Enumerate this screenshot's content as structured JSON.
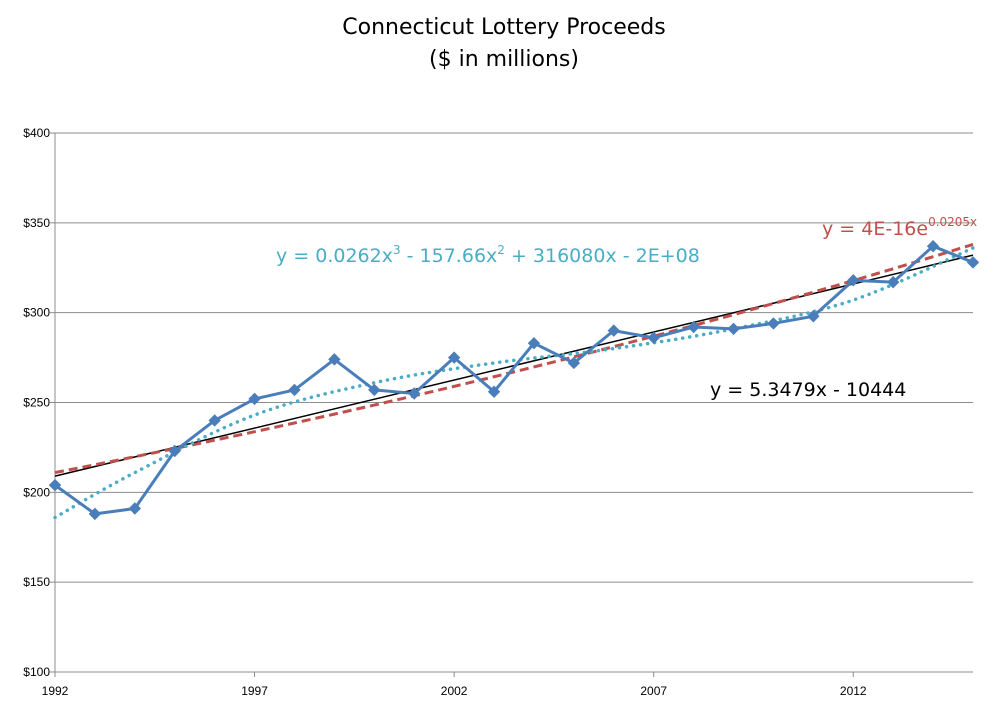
{
  "chart_data": {
    "type": "line",
    "title": "Connecticut Lottery Proceeds",
    "subtitle": "($ in millions)",
    "xlabel": "",
    "ylabel": "",
    "x": [
      1992,
      1993,
      1994,
      1995,
      1996,
      1997,
      1998,
      1999,
      2000,
      2001,
      2002,
      2003,
      2004,
      2005,
      2006,
      2007,
      2008,
      2009,
      2010,
      2011,
      2012,
      2013,
      2014,
      2015
    ],
    "xlim": [
      1992,
      2015
    ],
    "x_ticks": [
      1992,
      1997,
      2002,
      2007,
      2012
    ],
    "x_tick_labels": [
      "1992",
      "1997",
      "2002",
      "2007",
      "2012"
    ],
    "ylim": [
      100,
      400
    ],
    "y_ticks": [
      100,
      150,
      200,
      250,
      300,
      350,
      400
    ],
    "y_tick_labels": [
      "$100",
      "$150",
      "$200",
      "$250",
      "$300",
      "$350",
      "$400"
    ],
    "grid": "horizontal",
    "series": [
      {
        "values": [
          204,
          188,
          191,
          223,
          240,
          252,
          257,
          274,
          257,
          255,
          275,
          256,
          283,
          272,
          290,
          286,
          292,
          291,
          294,
          298,
          318,
          317,
          337,
          328
        ],
        "color": "#4a7ebb",
        "marker": "diamond"
      }
    ],
    "trendlines": [
      {
        "kind": "linear",
        "slope": 5.3479,
        "intercept": -10444,
        "color": "#000000",
        "style": "solid"
      },
      {
        "kind": "exponential",
        "start_value": 211,
        "end_value": 338,
        "color": "#c0504d",
        "style": "dashed"
      },
      {
        "kind": "polynomial",
        "degree": 3,
        "points": [
          [
            1992,
            186
          ],
          [
            1994,
            211
          ],
          [
            1997,
            243
          ],
          [
            2000,
            261
          ],
          [
            2003,
            272
          ],
          [
            2006,
            280
          ],
          [
            2009,
            291
          ],
          [
            2012,
            307
          ],
          [
            2015,
            336
          ]
        ],
        "color": "#4bacc6",
        "style": "dotted"
      }
    ],
    "annotations": {
      "poly": {
        "text_a": "y = 0.0262x",
        "sup_a": "3",
        "text_b": " - 157.66x",
        "sup_b": "2",
        "text_c": " + 316080x - 2E+08",
        "color": "#4bacc6"
      },
      "expo": {
        "text_a": "y = 4E-16e",
        "sup_a": "0.0205x",
        "color": "#c0504d"
      },
      "linear": {
        "text": "y = 5.3479x - 10444",
        "color": "#000000"
      }
    }
  }
}
